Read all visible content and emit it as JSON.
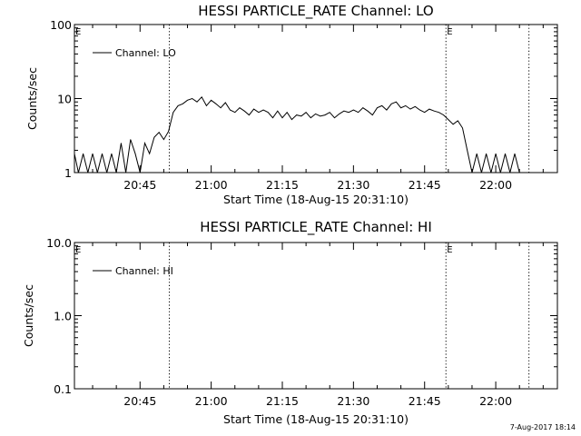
{
  "footer": {
    "stamp": "7-Aug-2017 18:14"
  },
  "chart_data": [
    {
      "type": "line",
      "title": "HESSI PARTICLE_RATE Channel: LO",
      "xlabel": "Start Time (18-Aug-15 20:31:10)",
      "ylabel": "Counts/sec",
      "y_scale": "log",
      "ylim": [
        1,
        100
      ],
      "ytick_labels": [
        "1",
        "10",
        "100"
      ],
      "xlim": [
        "20:31:10",
        "22:13:00"
      ],
      "xtick_labels": [
        "20:45",
        "21:00",
        "21:15",
        "21:30",
        "21:45",
        "22:00"
      ],
      "legend": {
        "placement": "top-left",
        "entries": [
          "Channel: LO"
        ]
      },
      "markers": [
        {
          "time": "20:51:10",
          "label": ""
        },
        {
          "time": "21:49:30",
          "label": "E"
        },
        {
          "time": "22:07:00",
          "label": ""
        }
      ],
      "corner_label": "E",
      "series": [
        {
          "name": "Channel: LO",
          "x": [
            "20:31:10",
            "20:32:00",
            "20:33:00",
            "20:34:00",
            "20:35:00",
            "20:36:00",
            "20:37:00",
            "20:38:00",
            "20:39:00",
            "20:40:00",
            "20:41:00",
            "20:42:00",
            "20:43:00",
            "20:44:00",
            "20:45:00",
            "20:46:00",
            "20:47:00",
            "20:48:00",
            "20:49:00",
            "20:50:00",
            "20:51:00",
            "20:52:00",
            "20:53:00",
            "20:54:00",
            "20:55:00",
            "20:56:00",
            "20:57:00",
            "20:58:00",
            "20:59:00",
            "21:00:00",
            "21:01:00",
            "21:02:00",
            "21:03:00",
            "21:04:00",
            "21:05:00",
            "21:06:00",
            "21:07:00",
            "21:08:00",
            "21:09:00",
            "21:10:00",
            "21:11:00",
            "21:12:00",
            "21:13:00",
            "21:14:00",
            "21:15:00",
            "21:16:00",
            "21:17:00",
            "21:18:00",
            "21:19:00",
            "21:20:00",
            "21:21:00",
            "21:22:00",
            "21:23:00",
            "21:24:00",
            "21:25:00",
            "21:26:00",
            "21:27:00",
            "21:28:00",
            "21:29:00",
            "21:30:00",
            "21:31:00",
            "21:32:00",
            "21:33:00",
            "21:34:00",
            "21:35:00",
            "21:36:00",
            "21:37:00",
            "21:38:00",
            "21:39:00",
            "21:40:00",
            "21:41:00",
            "21:42:00",
            "21:43:00",
            "21:44:00",
            "21:45:00",
            "21:46:00",
            "21:47:00",
            "21:48:00",
            "21:49:00",
            "21:50:00",
            "21:51:00",
            "21:52:00",
            "21:53:00",
            "21:54:00",
            "21:55:00",
            "21:56:00",
            "21:57:00",
            "21:58:00",
            "21:59:00",
            "22:00:00",
            "22:01:00",
            "22:02:00",
            "22:03:00",
            "22:04:00",
            "22:05:00"
          ],
          "y": [
            1.8,
            1.0,
            1.8,
            1.0,
            1.8,
            1.0,
            1.8,
            1.0,
            1.8,
            1.0,
            2.5,
            1.0,
            2.8,
            1.8,
            1.0,
            2.5,
            1.8,
            3.0,
            3.5,
            2.8,
            3.6,
            6.5,
            8.0,
            8.5,
            9.5,
            10.0,
            9.0,
            10.5,
            8.0,
            9.5,
            8.5,
            7.5,
            8.8,
            7.0,
            6.5,
            7.5,
            6.8,
            6.0,
            7.2,
            6.5,
            7.0,
            6.5,
            5.5,
            6.8,
            5.5,
            6.5,
            5.2,
            6.0,
            5.8,
            6.5,
            5.5,
            6.2,
            5.8,
            6.0,
            6.5,
            5.5,
            6.2,
            6.8,
            6.5,
            7.0,
            6.5,
            7.5,
            6.8,
            6.0,
            7.5,
            8.0,
            7.0,
            8.5,
            9.0,
            7.5,
            8.0,
            7.2,
            7.8,
            7.0,
            6.5,
            7.2,
            6.8,
            6.5,
            6.0,
            5.2,
            4.5,
            5.0,
            4.0,
            2.0,
            1.0,
            1.8,
            1.0,
            1.8,
            1.0,
            1.8,
            1.0,
            1.8,
            1.0,
            1.8,
            1.0
          ]
        }
      ]
    },
    {
      "type": "line",
      "title": "HESSI PARTICLE_RATE Channel: HI",
      "xlabel": "Start Time (18-Aug-15 20:31:10)",
      "ylabel": "Counts/sec",
      "y_scale": "log",
      "ylim": [
        0.1,
        10
      ],
      "ytick_labels": [
        "0.1",
        "1.0",
        "10.0"
      ],
      "xlim": [
        "20:31:10",
        "22:13:00"
      ],
      "xtick_labels": [
        "20:45",
        "21:00",
        "21:15",
        "21:30",
        "21:45",
        "22:00"
      ],
      "legend": {
        "placement": "top-left",
        "entries": [
          "Channel: HI"
        ]
      },
      "markers": [
        {
          "time": "20:51:10",
          "label": ""
        },
        {
          "time": "21:49:30",
          "label": "E"
        },
        {
          "time": "22:07:00",
          "label": ""
        }
      ],
      "corner_label": "E",
      "series": [
        {
          "name": "Channel: HI",
          "x": [],
          "y": []
        }
      ]
    }
  ]
}
